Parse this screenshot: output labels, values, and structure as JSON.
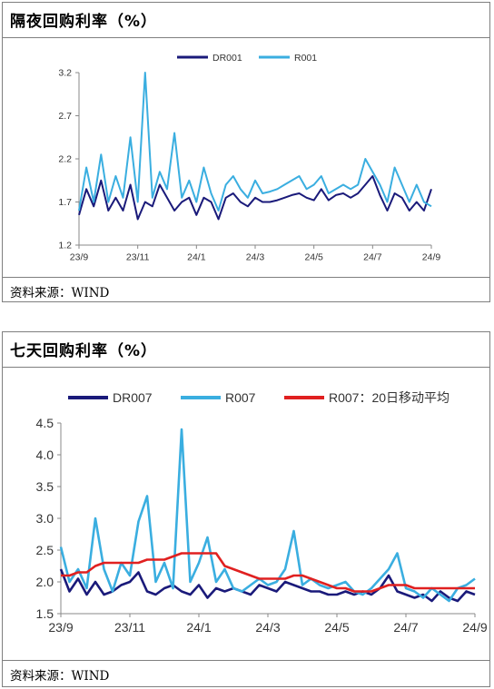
{
  "panel1": {
    "title": "隔夜回购利率（%）",
    "source": "资料来源：WIND"
  },
  "panel2": {
    "title": "七天回购利率（%）",
    "source": "资料来源：WIND"
  },
  "chart_data": [
    {
      "type": "line",
      "title": "隔夜回购利率（%）",
      "ylim": [
        1.2,
        3.2
      ],
      "yticks": [
        "1.2",
        "1.7",
        "2.2",
        "2.7",
        "3.2"
      ],
      "xticks": [
        "23/9",
        "23/11",
        "24/1",
        "24/3",
        "24/5",
        "24/7",
        "24/9"
      ],
      "grid": false,
      "legend": "top-center",
      "x_count": 49,
      "series": [
        {
          "name": "DR001",
          "color": "#1a1a7a",
          "values": [
            1.55,
            1.85,
            1.65,
            1.95,
            1.6,
            1.75,
            1.6,
            1.9,
            1.5,
            1.7,
            1.65,
            1.9,
            1.75,
            1.6,
            1.7,
            1.75,
            1.55,
            1.75,
            1.7,
            1.5,
            1.75,
            1.8,
            1.7,
            1.65,
            1.75,
            1.7,
            1.7,
            1.72,
            1.75,
            1.78,
            1.8,
            1.75,
            1.72,
            1.85,
            1.72,
            1.78,
            1.8,
            1.75,
            1.8,
            1.9,
            2.0,
            1.78,
            1.6,
            1.8,
            1.75,
            1.6,
            1.7,
            1.6,
            1.85
          ]
        },
        {
          "name": "R001",
          "color": "#3aaee0",
          "values": [
            1.6,
            2.1,
            1.7,
            2.25,
            1.7,
            2.0,
            1.75,
            2.45,
            1.7,
            3.2,
            1.75,
            2.05,
            1.85,
            2.5,
            1.75,
            1.95,
            1.7,
            2.1,
            1.8,
            1.6,
            1.9,
            2.0,
            1.85,
            1.75,
            1.95,
            1.8,
            1.82,
            1.85,
            1.9,
            1.95,
            2.0,
            1.85,
            1.9,
            2.0,
            1.8,
            1.85,
            1.9,
            1.85,
            1.9,
            2.2,
            2.05,
            1.9,
            1.7,
            2.1,
            1.9,
            1.7,
            1.9,
            1.7,
            1.65
          ]
        }
      ]
    },
    {
      "type": "line",
      "title": "七天回购利率（%）",
      "ylim": [
        1.5,
        4.5
      ],
      "yticks": [
        "1.5",
        "2.0",
        "2.5",
        "3.0",
        "3.5",
        "4.0",
        "4.5"
      ],
      "xticks": [
        "23/9",
        "23/11",
        "24/1",
        "24/3",
        "24/5",
        "24/7",
        "24/9"
      ],
      "grid": false,
      "legend": "top",
      "x_count": 49,
      "series": [
        {
          "name": "DR007",
          "color": "#1a1a7a",
          "values": [
            2.2,
            1.85,
            2.05,
            1.8,
            2.0,
            1.8,
            1.85,
            1.95,
            2.0,
            2.15,
            1.85,
            1.8,
            1.9,
            1.95,
            1.85,
            1.8,
            1.95,
            1.75,
            1.9,
            1.85,
            1.9,
            1.85,
            1.8,
            1.95,
            1.9,
            1.85,
            2.0,
            1.95,
            1.9,
            1.85,
            1.85,
            1.8,
            1.8,
            1.85,
            1.8,
            1.85,
            1.8,
            1.9,
            2.1,
            1.85,
            1.8,
            1.75,
            1.8,
            1.7,
            1.85,
            1.75,
            1.7,
            1.85,
            1.8
          ]
        },
        {
          "name": "R007",
          "color": "#3aaee0",
          "values": [
            2.55,
            2.0,
            2.2,
            1.9,
            3.0,
            2.2,
            1.85,
            2.3,
            2.1,
            2.95,
            3.35,
            2.0,
            2.3,
            1.9,
            4.4,
            2.0,
            2.3,
            2.7,
            2.0,
            2.2,
            1.9,
            1.85,
            1.95,
            2.05,
            1.95,
            2.0,
            2.2,
            2.8,
            1.95,
            2.05,
            1.95,
            1.9,
            1.95,
            2.0,
            1.85,
            1.8,
            1.9,
            2.05,
            2.2,
            2.45,
            1.9,
            1.85,
            1.75,
            1.9,
            1.8,
            1.7,
            1.9,
            1.95,
            2.05
          ]
        },
        {
          "name": "R007：20日移动平均",
          "color": "#e02020",
          "values": [
            2.1,
            2.1,
            2.15,
            2.15,
            2.25,
            2.3,
            2.3,
            2.3,
            2.3,
            2.3,
            2.35,
            2.35,
            2.35,
            2.4,
            2.45,
            2.45,
            2.45,
            2.45,
            2.45,
            2.25,
            2.2,
            2.15,
            2.1,
            2.05,
            2.05,
            2.05,
            2.05,
            2.1,
            2.1,
            2.05,
            2.0,
            1.95,
            1.9,
            1.9,
            1.85,
            1.85,
            1.85,
            1.9,
            1.95,
            1.95,
            1.95,
            1.9,
            1.9,
            1.9,
            1.9,
            1.9,
            1.9,
            1.9,
            1.9
          ]
        }
      ]
    }
  ]
}
